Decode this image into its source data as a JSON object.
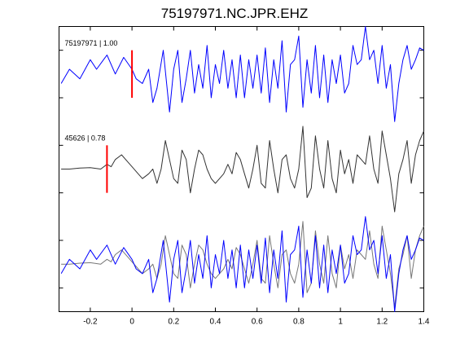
{
  "chart_data": {
    "type": "line",
    "title": "75197971.NC.JPR.EHZ",
    "xlabel": "",
    "ylabel": "",
    "xlim": [
      -0.35,
      1.4
    ],
    "xticks": [
      -0.2,
      0,
      0.2,
      0.4,
      0.6,
      0.8,
      1,
      1.2,
      1.4
    ],
    "xtick_labels": [
      "-0.2",
      "0",
      "0.2",
      "0.4",
      "0.6",
      "0.8",
      "1",
      "1.2",
      "1.4"
    ],
    "ylim": [
      -3,
      3
    ],
    "grid": false,
    "colors": {
      "template": "#0000ff",
      "match": "#333333",
      "overlay_match": "#777777",
      "pick": "#ff0000"
    },
    "traces": [
      {
        "label": "75197971 | 1.00",
        "color": "#0000ff",
        "offset": 2,
        "pick_time": 0.0,
        "x": [
          -0.34,
          -0.3,
          -0.25,
          -0.2,
          -0.17,
          -0.12,
          -0.08,
          -0.04,
          0,
          0.02,
          0.05,
          0.08,
          0.1,
          0.12,
          0.15,
          0.18,
          0.2,
          0.22,
          0.24,
          0.26,
          0.28,
          0.3,
          0.32,
          0.34,
          0.36,
          0.38,
          0.4,
          0.42,
          0.44,
          0.46,
          0.48,
          0.5,
          0.52,
          0.54,
          0.56,
          0.58,
          0.6,
          0.62,
          0.64,
          0.66,
          0.68,
          0.7,
          0.72,
          0.74,
          0.76,
          0.78,
          0.8,
          0.82,
          0.84,
          0.86,
          0.88,
          0.9,
          0.92,
          0.94,
          0.96,
          0.98,
          1,
          1.02,
          1.04,
          1.06,
          1.08,
          1.1,
          1.12,
          1.14,
          1.16,
          1.18,
          1.2,
          1.22,
          1.24,
          1.26,
          1.28,
          1.3,
          1.32,
          1.34,
          1.36,
          1.38,
          1.4
        ],
        "y": [
          -0.2,
          0.1,
          -0.1,
          0.3,
          0.1,
          0.4,
          0.0,
          0.35,
          0.1,
          -0.1,
          -0.2,
          0.1,
          -0.6,
          -0.3,
          0.5,
          -0.8,
          0.1,
          0.5,
          -0.6,
          -0.1,
          0.5,
          -0.4,
          0.2,
          -0.3,
          0.6,
          -0.5,
          0.2,
          -0.2,
          0.5,
          -0.3,
          0.3,
          -0.5,
          0.4,
          -0.5,
          0.3,
          -0.3,
          0.4,
          -0.4,
          0.55,
          -0.6,
          0.3,
          -0.3,
          0.7,
          -0.8,
          0.2,
          0.3,
          0.8,
          -0.7,
          0.3,
          -0.4,
          0.6,
          -0.5,
          0.4,
          -0.6,
          0.3,
          -0.2,
          0.4,
          -0.4,
          -0.2,
          0.6,
          0.2,
          0.3,
          1.0,
          0.3,
          0.5,
          -0.2,
          0.6,
          -0.3,
          0.2,
          -1.0,
          -0.2,
          0.3,
          0.6,
          0.1,
          0.3,
          0.55,
          0.5
        ]
      },
      {
        "label": "45626 | 0.78",
        "color": "#333333",
        "offset": 0,
        "pick_time": -0.12,
        "x": [
          -0.34,
          -0.3,
          -0.25,
          -0.2,
          -0.15,
          -0.12,
          -0.1,
          -0.08,
          -0.05,
          -0.02,
          0,
          0.02,
          0.05,
          0.08,
          0.1,
          0.12,
          0.14,
          0.16,
          0.18,
          0.2,
          0.22,
          0.24,
          0.26,
          0.28,
          0.3,
          0.32,
          0.34,
          0.36,
          0.38,
          0.4,
          0.42,
          0.44,
          0.46,
          0.48,
          0.5,
          0.52,
          0.54,
          0.56,
          0.58,
          0.6,
          0.62,
          0.64,
          0.66,
          0.68,
          0.7,
          0.72,
          0.74,
          0.76,
          0.78,
          0.8,
          0.82,
          0.84,
          0.86,
          0.88,
          0.9,
          0.92,
          0.94,
          0.96,
          0.98,
          1,
          1.02,
          1.04,
          1.06,
          1.08,
          1.1,
          1.12,
          1.14,
          1.16,
          1.18,
          1.2,
          1.22,
          1.24,
          1.26,
          1.28,
          1.3,
          1.32,
          1.34,
          1.36,
          1.38,
          1.4
        ],
        "y": [
          0,
          0.0,
          0.02,
          0.03,
          0.0,
          0.1,
          0.05,
          0.2,
          0.3,
          0.15,
          0.05,
          -0.05,
          -0.2,
          -0.1,
          0.0,
          -0.3,
          0.0,
          0.6,
          0.2,
          -0.2,
          -0.3,
          0.4,
          0.2,
          -0.5,
          0.0,
          0.4,
          0.3,
          0.0,
          -0.2,
          -0.3,
          -0.2,
          -0.1,
          0.1,
          -0.1,
          0.35,
          0.2,
          -0.1,
          -0.4,
          0.0,
          0.5,
          -0.3,
          -0.4,
          0.6,
          0.0,
          -0.5,
          0.2,
          0.3,
          -0.2,
          -0.4,
          0.0,
          0.9,
          -0.6,
          -0.4,
          0.7,
          0.0,
          -0.4,
          0.6,
          -0.2,
          -0.5,
          0.4,
          -0.1,
          0.2,
          -0.3,
          0.3,
          0.2,
          0.1,
          0.7,
          0.0,
          -0.3,
          0.8,
          0.3,
          -0.2,
          -0.9,
          -0.1,
          0.2,
          0.6,
          -0.3,
          0.3,
          0.6,
          0.8
        ]
      }
    ],
    "overlay": {
      "offset": -2,
      "series_colors": [
        "#0000ff",
        "#777777"
      ]
    }
  }
}
